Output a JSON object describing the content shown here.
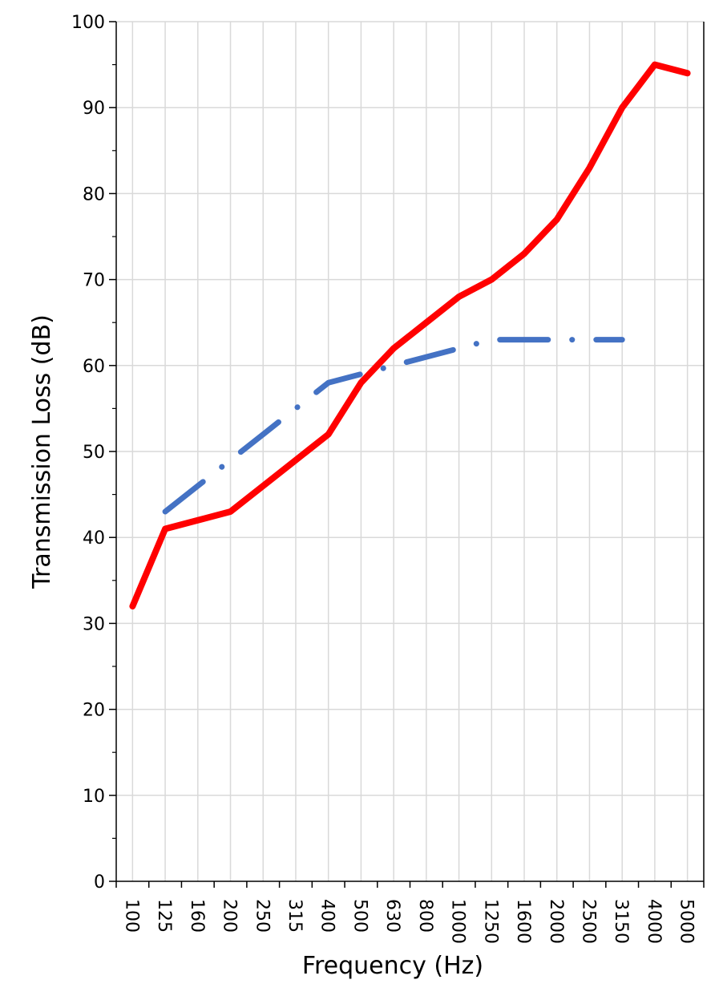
{
  "chart_data": {
    "type": "line",
    "title": "",
    "xlabel": "Frequency (Hz)",
    "ylabel": "Transmission Loss (dB)",
    "ylim": [
      0,
      100
    ],
    "yticks": [
      "0",
      "10",
      "20",
      "30",
      "40",
      "50",
      "60",
      "70",
      "80",
      "90",
      "100"
    ],
    "categories": [
      "100",
      "125",
      "160",
      "200",
      "250",
      "315",
      "400",
      "500",
      "630",
      "800",
      "1000",
      "1250",
      "1600",
      "2000",
      "2500",
      "3150",
      "4000",
      "5000"
    ],
    "grid": true,
    "legend": "none",
    "series": [
      {
        "color": "#ff0000",
        "style": "solid",
        "values": [
          32,
          41,
          42,
          43,
          46,
          49,
          52,
          58,
          62,
          65,
          68,
          70,
          73,
          77,
          83,
          90,
          95,
          94
        ]
      },
      {
        "color": "#4472c4",
        "style": "dash-dot",
        "values": [
          null,
          43,
          46,
          49,
          52,
          55,
          58,
          59,
          60,
          61,
          62,
          63,
          63,
          63,
          63,
          63,
          null,
          null
        ]
      }
    ]
  }
}
